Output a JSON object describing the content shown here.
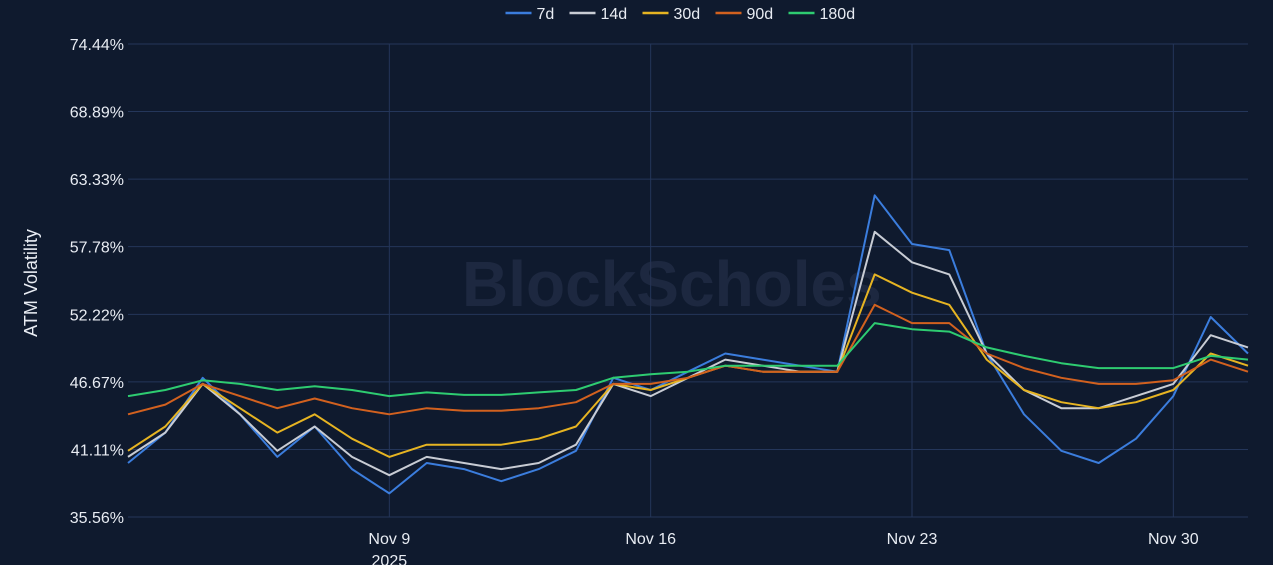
{
  "chart_data": {
    "type": "line",
    "watermark": "BlockScholes",
    "ylabel": "ATM Volatility",
    "ylim": [
      35.56,
      74.44
    ],
    "yticks": [
      "74.44%",
      "68.89%",
      "63.33%",
      "57.78%",
      "52.22%",
      "46.67%",
      "41.11%",
      "35.56%"
    ],
    "ytick_values": [
      74.44,
      68.89,
      63.33,
      57.78,
      52.22,
      46.67,
      41.11,
      35.56
    ],
    "xlim": [
      "2025-11-02",
      "2025-12-02"
    ],
    "xticks": [
      {
        "date": "2025-11-09",
        "label": "Nov 9",
        "sublabel": "2025"
      },
      {
        "date": "2025-11-16",
        "label": "Nov 16",
        "sublabel": ""
      },
      {
        "date": "2025-11-23",
        "label": "Nov 23",
        "sublabel": ""
      },
      {
        "date": "2025-11-30",
        "label": "Nov 30",
        "sublabel": ""
      }
    ],
    "grid": true,
    "legend_position": "top-center",
    "x": [
      "2025-11-02",
      "2025-11-03",
      "2025-11-04",
      "2025-11-05",
      "2025-11-06",
      "2025-11-07",
      "2025-11-08",
      "2025-11-09",
      "2025-11-10",
      "2025-11-11",
      "2025-11-12",
      "2025-11-13",
      "2025-11-14",
      "2025-11-15",
      "2025-11-16",
      "2025-11-17",
      "2025-11-18",
      "2025-11-19",
      "2025-11-20",
      "2025-11-21",
      "2025-11-22",
      "2025-11-23",
      "2025-11-24",
      "2025-11-25",
      "2025-11-26",
      "2025-11-27",
      "2025-11-28",
      "2025-11-29",
      "2025-11-30",
      "2025-12-01",
      "2025-12-02"
    ],
    "series": [
      {
        "name": "7d",
        "color": "#3b7ddd",
        "values": [
          40.0,
          42.5,
          47.0,
          44.0,
          40.5,
          43.0,
          39.5,
          37.5,
          40.0,
          39.5,
          38.5,
          39.5,
          41.0,
          47.0,
          46.0,
          47.5,
          49.0,
          48.5,
          48.0,
          47.5,
          62.0,
          58.0,
          57.5,
          49.0,
          44.0,
          41.0,
          40.0,
          42.0,
          45.5,
          52.0,
          49.0
        ]
      },
      {
        "name": "14d",
        "color": "#c8ccd4",
        "values": [
          40.5,
          42.5,
          46.5,
          44.0,
          41.0,
          43.0,
          40.5,
          39.0,
          40.5,
          40.0,
          39.5,
          40.0,
          41.5,
          46.5,
          45.5,
          47.0,
          48.5,
          48.0,
          47.5,
          47.5,
          59.0,
          56.5,
          55.5,
          49.0,
          46.0,
          44.5,
          44.5,
          45.5,
          46.5,
          50.5,
          49.5
        ]
      },
      {
        "name": "30d",
        "color": "#e6b422",
        "values": [
          41.0,
          43.0,
          46.5,
          44.5,
          42.5,
          44.0,
          42.0,
          40.5,
          41.5,
          41.5,
          41.5,
          42.0,
          43.0,
          46.5,
          46.0,
          47.0,
          48.0,
          47.5,
          47.5,
          47.5,
          55.5,
          54.0,
          53.0,
          48.5,
          46.0,
          45.0,
          44.5,
          45.0,
          46.0,
          49.0,
          48.0
        ]
      },
      {
        "name": "90d",
        "color": "#d2611f",
        "values": [
          44.0,
          44.8,
          46.5,
          45.5,
          44.5,
          45.3,
          44.5,
          44.0,
          44.5,
          44.3,
          44.3,
          44.5,
          45.0,
          46.5,
          46.5,
          47.0,
          48.0,
          47.5,
          47.5,
          47.5,
          53.0,
          51.5,
          51.5,
          49.0,
          47.8,
          47.0,
          46.5,
          46.5,
          46.8,
          48.5,
          47.5
        ]
      },
      {
        "name": "180d",
        "color": "#2ecc71",
        "values": [
          45.5,
          46.0,
          46.8,
          46.5,
          46.0,
          46.3,
          46.0,
          45.5,
          45.8,
          45.6,
          45.6,
          45.8,
          46.0,
          47.0,
          47.3,
          47.5,
          48.0,
          48.0,
          48.0,
          48.0,
          51.5,
          51.0,
          50.8,
          49.5,
          48.8,
          48.2,
          47.8,
          47.8,
          47.8,
          48.8,
          48.5
        ]
      }
    ]
  }
}
